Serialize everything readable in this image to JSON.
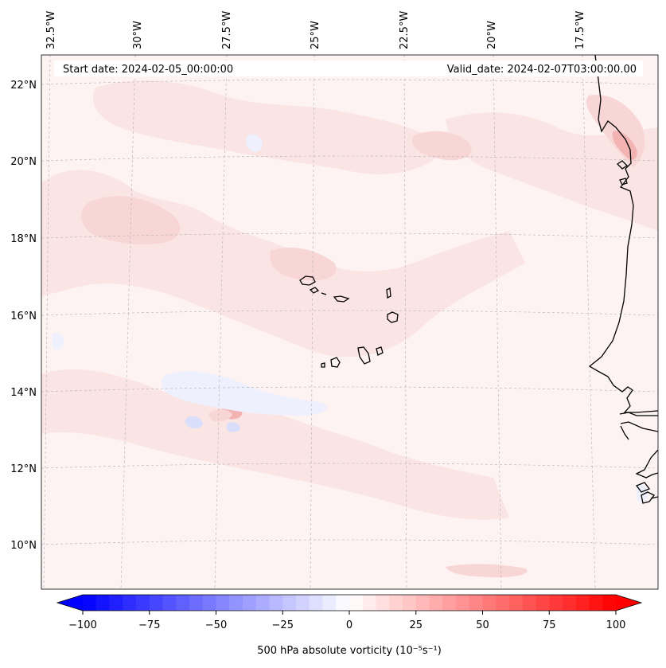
{
  "map": {
    "header": {
      "start_date": "Start date: 2024-02-05_00:00:00",
      "valid_date": "Valid_date: 2024-02-07T03:00:00.00"
    },
    "lon_labels": [
      "32.5°W",
      "30°W",
      "27.5°W",
      "25°W",
      "22.5°W",
      "20°W",
      "17.5°W"
    ],
    "lat_labels": [
      "22°N",
      "20°N",
      "18°N",
      "16°N",
      "14°N",
      "12°N",
      "10°N"
    ],
    "field_colors": {
      "background": "#fdf3f3",
      "light_pink": "#fbe4e4",
      "pink": "#f9d6d6",
      "strong_pink": "#f3b3b3",
      "light_blue": "#eef0fd",
      "blue": "#d9defa"
    },
    "coast_color": "#000000",
    "grid_color": "#b0b0b0"
  },
  "colorbar": {
    "label": "500 hPa absolute vorticity (10⁻⁵s⁻¹)",
    "tick_labels": [
      "−100",
      "−75",
      "−50",
      "−25",
      "0",
      "25",
      "50",
      "75",
      "100"
    ],
    "min": -100,
    "max": 100,
    "step": 5,
    "low_color": "#0000ff",
    "mid_color": "#ffffff",
    "high_color": "#ff0000"
  }
}
